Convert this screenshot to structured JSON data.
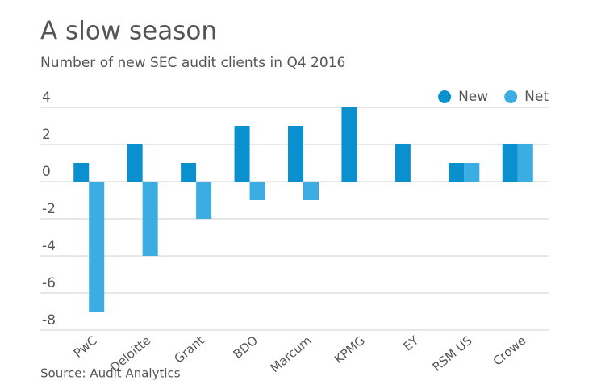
{
  "chart_data": {
    "type": "bar",
    "title": "A slow season",
    "subtitle": "Number of new SEC audit clients in Q4 2016",
    "source": "Source: Audit Analytics",
    "categories": [
      "PwC",
      "Deloitte",
      "Grant",
      "BDO",
      "Marcum",
      "KPMG",
      "EY",
      "RSM US",
      "Crowe"
    ],
    "series": [
      {
        "name": "New",
        "color": "#0a8fcf",
        "values": [
          1,
          2,
          1,
          3,
          3,
          4,
          2,
          1,
          2
        ]
      },
      {
        "name": "Net",
        "color": "#3badE2",
        "values": [
          -7,
          -4,
          -2,
          -1,
          -1,
          0,
          0,
          1,
          2
        ]
      }
    ],
    "ylim": [
      -8,
      4
    ],
    "yticks": [
      4,
      2,
      0,
      -2,
      -4,
      -6,
      -8
    ],
    "grid": true,
    "legend": "top-right"
  }
}
